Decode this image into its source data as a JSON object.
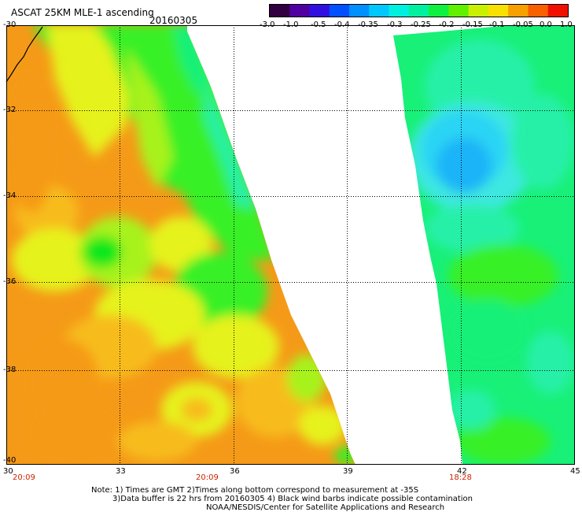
{
  "header": {
    "title": "ASCAT 25KM MLE-1 ascending",
    "date": "20160305"
  },
  "colorbar": {
    "ticks": [
      "-3.0",
      "-1.0",
      "-0.5",
      "-0.4",
      "-0.35",
      "-0.3",
      "-0.25",
      "-0.2",
      "-0.15",
      "-0.1",
      "-0.05",
      "0.0",
      "1.0"
    ],
    "colors": [
      "#300040",
      "#5000a0",
      "#3010e0",
      "#0050ff",
      "#0090ff",
      "#00c8ff",
      "#00f0e0",
      "#00f0a0",
      "#10f040",
      "#60f000",
      "#c8f000",
      "#f8e000",
      "#f8a000",
      "#f86000",
      "#f01000"
    ]
  },
  "map": {
    "lat_labels": [
      "-30",
      "-32",
      "-34",
      "-36",
      "-38",
      "-40"
    ],
    "lon_labels": [
      "30",
      "33",
      "36",
      "39",
      "42",
      "45"
    ],
    "colors": {
      "orange": "#f59a18",
      "lightorange": "#f7bc1e",
      "yellow": "#e6f21a",
      "yellowgreen": "#a8f21e",
      "green": "#38f028",
      "brightgreen": "#10e81e",
      "seagreen": "#18f078",
      "cyangreen": "#28f0a8",
      "cyan": "#3ee8e0",
      "skyblue": "#2ad4f4",
      "blue": "#1ab4f8"
    }
  },
  "times": [
    "20:09",
    "20:09",
    "18:28"
  ],
  "notes": {
    "line1": "Note: 1) Times are GMT 2)Times along bottom correspond to measurement at -35S",
    "line2": "3)Data buffer is 22 hrs from 20160305 4) Black wind barbs indicate possible contamination",
    "line3": "NOAA/NESDIS/Center for Satellite Applications and Research"
  }
}
